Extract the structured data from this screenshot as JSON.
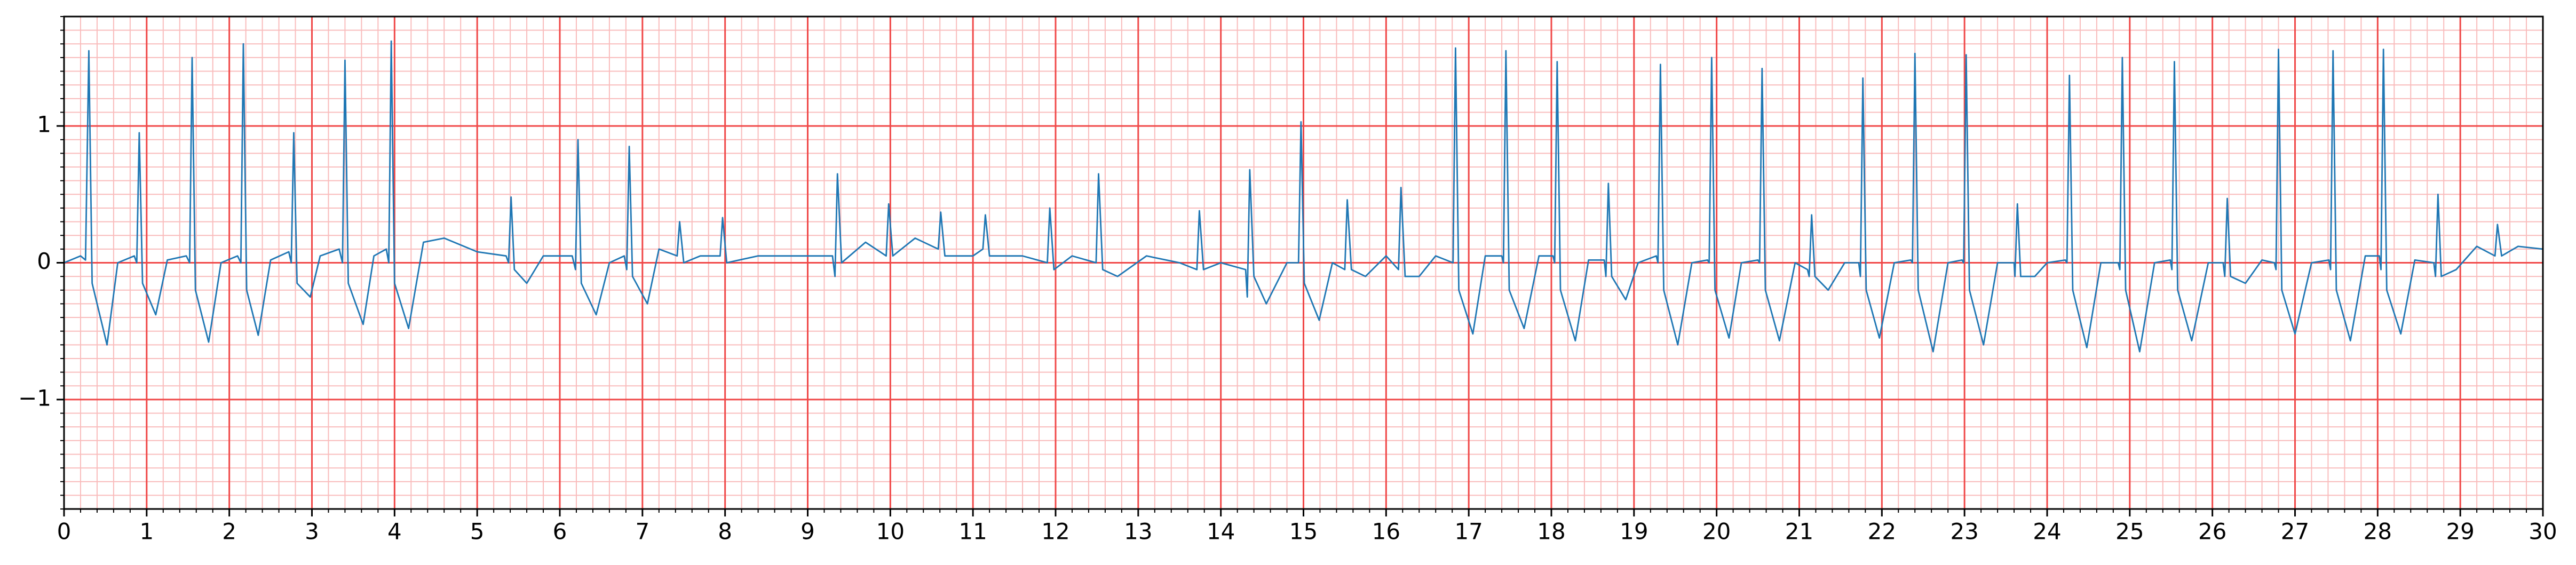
{
  "chart_data": {
    "type": "line",
    "xlim": [
      0,
      30
    ],
    "ylim": [
      -1.8,
      1.8
    ],
    "xticks": [
      0,
      1,
      2,
      3,
      4,
      5,
      6,
      7,
      8,
      9,
      10,
      11,
      12,
      13,
      14,
      15,
      16,
      17,
      18,
      19,
      20,
      21,
      22,
      23,
      24,
      25,
      26,
      27,
      28,
      29,
      30
    ],
    "yticks": [
      {
        "value": -1,
        "label": "−1"
      },
      0,
      1
    ],
    "grid": true,
    "major_grid_color": "#f04848",
    "minor_grid_color": "#f9bcbc",
    "x_minor_step": 0.2,
    "y_minor_step": 0.1,
    "x": [
      0,
      0.2,
      0.26,
      0.3,
      0.34,
      0.52,
      0.65,
      0.85,
      0.88,
      0.91,
      0.95,
      1.11,
      1.25,
      1.48,
      1.52,
      1.55,
      1.59,
      1.75,
      1.9,
      2.1,
      2.14,
      2.17,
      2.21,
      2.35,
      2.5,
      2.72,
      2.75,
      2.78,
      2.82,
      2.98,
      3.1,
      3.33,
      3.37,
      3.4,
      3.44,
      3.62,
      3.75,
      3.9,
      3.93,
      3.96,
      4.0,
      4.17,
      4.35,
      4.6,
      5.0,
      5.35,
      5.38,
      5.41,
      5.45,
      5.6,
      5.8,
      6.15,
      6.19,
      6.22,
      6.26,
      6.44,
      6.6,
      6.78,
      6.81,
      6.84,
      6.88,
      7.06,
      7.2,
      7.42,
      7.45,
      7.5,
      7.7,
      7.94,
      7.97,
      8.02,
      8.4,
      8.9,
      9.3,
      9.33,
      9.36,
      9.41,
      9.7,
      9.95,
      9.98,
      10.03,
      10.3,
      10.58,
      10.61,
      10.66,
      11.0,
      11.12,
      11.15,
      11.2,
      11.6,
      11.9,
      11.93,
      11.98,
      12.2,
      12.49,
      12.52,
      12.57,
      12.75,
      13.1,
      13.5,
      13.71,
      13.74,
      13.79,
      14.0,
      14.3,
      14.32,
      14.35,
      14.4,
      14.55,
      14.8,
      14.94,
      14.97,
      15.01,
      15.19,
      15.35,
      15.5,
      15.53,
      15.58,
      15.75,
      16.0,
      16.15,
      16.18,
      16.23,
      16.4,
      16.6,
      16.81,
      16.84,
      16.88,
      17.05,
      17.2,
      17.4,
      17.42,
      17.45,
      17.49,
      17.67,
      17.85,
      18.02,
      18.04,
      18.07,
      18.11,
      18.29,
      18.45,
      18.64,
      18.66,
      18.69,
      18.73,
      18.9,
      19.05,
      19.27,
      19.29,
      19.32,
      19.36,
      19.53,
      19.7,
      19.89,
      19.91,
      19.94,
      19.98,
      20.15,
      20.3,
      20.5,
      20.52,
      20.55,
      20.59,
      20.76,
      20.95,
      21.1,
      21.12,
      21.15,
      21.19,
      21.35,
      21.55,
      21.72,
      21.74,
      21.77,
      21.81,
      21.97,
      22.15,
      22.35,
      22.37,
      22.4,
      22.44,
      22.62,
      22.8,
      22.97,
      22.99,
      23.02,
      23.06,
      23.23,
      23.4,
      23.6,
      23.61,
      23.64,
      23.68,
      23.85,
      24.0,
      24.22,
      24.24,
      24.27,
      24.31,
      24.48,
      24.65,
      24.86,
      24.88,
      24.91,
      24.95,
      25.12,
      25.3,
      25.49,
      25.51,
      25.54,
      25.58,
      25.75,
      25.95,
      26.13,
      26.15,
      26.18,
      26.22,
      26.4,
      26.6,
      26.75,
      26.77,
      26.8,
      26.84,
      27.0,
      27.2,
      27.41,
      27.43,
      27.46,
      27.5,
      27.67,
      27.85,
      28.02,
      28.04,
      28.07,
      28.11,
      28.28,
      28.45,
      28.68,
      28.7,
      28.73,
      28.77,
      28.95,
      29.2,
      29.42,
      29.45,
      29.5,
      29.7,
      30.0
    ],
    "series": [
      {
        "color": "#1f77b4",
        "values": [
          0,
          0.05,
          0.02,
          1.55,
          -0.15,
          -0.6,
          0.0,
          0.05,
          0.0,
          0.95,
          -0.15,
          -0.38,
          0.02,
          0.05,
          0.0,
          1.5,
          -0.2,
          -0.58,
          0.0,
          0.05,
          0.0,
          1.6,
          -0.2,
          -0.53,
          0.02,
          0.08,
          0.0,
          0.95,
          -0.15,
          -0.25,
          0.05,
          0.1,
          0.0,
          1.48,
          -0.15,
          -0.45,
          0.05,
          0.1,
          0.0,
          1.62,
          -0.15,
          -0.48,
          0.15,
          0.18,
          0.08,
          0.05,
          0.0,
          0.48,
          -0.05,
          -0.15,
          0.05,
          0.05,
          -0.05,
          0.9,
          -0.15,
          -0.38,
          0.0,
          0.05,
          -0.05,
          0.85,
          -0.1,
          -0.3,
          0.1,
          0.05,
          0.3,
          0.0,
          0.05,
          0.05,
          0.33,
          0.0,
          0.05,
          0.05,
          0.05,
          -0.1,
          0.65,
          0.0,
          0.15,
          0.05,
          0.43,
          0.05,
          0.18,
          0.1,
          0.37,
          0.05,
          0.05,
          0.1,
          0.35,
          0.05,
          0.05,
          0.0,
          0.4,
          -0.05,
          0.05,
          0.0,
          0.65,
          -0.05,
          -0.1,
          0.05,
          0.0,
          -0.05,
          0.38,
          -0.05,
          0.0,
          -0.05,
          -0.25,
          0.68,
          -0.1,
          -0.3,
          0.0,
          0.0,
          1.03,
          -0.15,
          -0.42,
          0.0,
          -0.05,
          0.46,
          -0.05,
          -0.1,
          0.05,
          -0.05,
          0.55,
          -0.1,
          -0.1,
          0.05,
          0.0,
          1.57,
          -0.2,
          -0.52,
          0.05,
          0.05,
          0.0,
          1.55,
          -0.2,
          -0.48,
          0.05,
          0.05,
          0.0,
          1.47,
          -0.2,
          -0.57,
          0.02,
          0.02,
          -0.1,
          0.58,
          -0.1,
          -0.27,
          0.0,
          0.05,
          0.0,
          1.45,
          -0.2,
          -0.6,
          0.0,
          0.02,
          0.0,
          1.5,
          -0.2,
          -0.55,
          0.0,
          0.02,
          0.0,
          1.42,
          -0.2,
          -0.57,
          0.0,
          -0.05,
          -0.1,
          0.35,
          -0.1,
          -0.2,
          0.0,
          0.0,
          -0.1,
          1.35,
          -0.2,
          -0.55,
          0.0,
          0.02,
          0.0,
          1.53,
          -0.2,
          -0.65,
          0.0,
          0.02,
          0.0,
          1.52,
          -0.2,
          -0.6,
          0.0,
          0.0,
          -0.1,
          0.43,
          -0.1,
          -0.1,
          0.0,
          0.02,
          0.0,
          1.37,
          -0.2,
          -0.62,
          0.0,
          0.0,
          -0.05,
          1.5,
          -0.2,
          -0.65,
          0.0,
          0.02,
          -0.05,
          1.47,
          -0.2,
          -0.57,
          0.0,
          0.0,
          -0.1,
          0.47,
          -0.1,
          -0.15,
          0.02,
          0.0,
          -0.05,
          1.56,
          -0.2,
          -0.52,
          0.0,
          0.02,
          -0.05,
          1.55,
          -0.2,
          -0.57,
          0.05,
          0.05,
          -0.05,
          1.56,
          -0.2,
          -0.52,
          0.02,
          0.0,
          -0.1,
          0.5,
          -0.1,
          -0.05,
          0.12,
          0.05,
          0.28,
          0.05,
          0.12,
          0.1
        ]
      }
    ]
  }
}
